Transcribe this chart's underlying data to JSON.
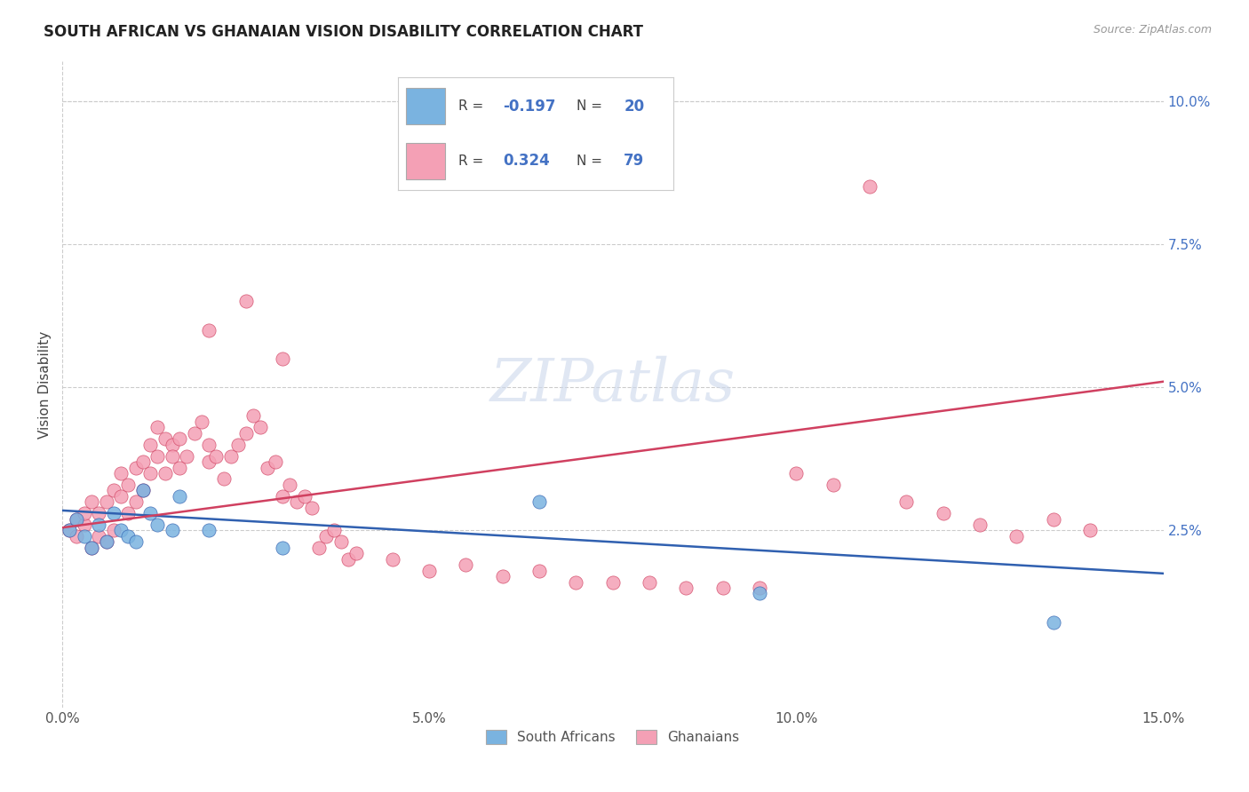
{
  "title": "SOUTH AFRICAN VS GHANAIAN VISION DISABILITY CORRELATION CHART",
  "source": "Source: ZipAtlas.com",
  "ylabel": "Vision Disability",
  "xlim": [
    0.0,
    0.15
  ],
  "ylim": [
    -0.006,
    0.107
  ],
  "sa_color": "#7ab3e0",
  "gh_color": "#f4a0b5",
  "sa_line_color": "#3060b0",
  "gh_line_color": "#d04060",
  "watermark": "ZIPatlas",
  "background_color": "#ffffff",
  "grid_color": "#cccccc",
  "title_color": "#222222",
  "axis_color": "#4472c4",
  "sa_line_y0": 0.0285,
  "sa_line_y1": 0.0175,
  "gh_line_y0": 0.0255,
  "gh_line_y1": 0.051,
  "sa_points_x": [
    0.001,
    0.002,
    0.003,
    0.004,
    0.005,
    0.006,
    0.007,
    0.008,
    0.009,
    0.01,
    0.011,
    0.012,
    0.013,
    0.015,
    0.016,
    0.02,
    0.03,
    0.065,
    0.095,
    0.135
  ],
  "sa_points_y": [
    0.025,
    0.027,
    0.024,
    0.022,
    0.026,
    0.023,
    0.028,
    0.025,
    0.024,
    0.023,
    0.032,
    0.028,
    0.026,
    0.025,
    0.031,
    0.025,
    0.022,
    0.03,
    0.014,
    0.009
  ],
  "gh_points_x": [
    0.001,
    0.002,
    0.002,
    0.003,
    0.003,
    0.004,
    0.004,
    0.005,
    0.005,
    0.006,
    0.006,
    0.007,
    0.007,
    0.008,
    0.008,
    0.009,
    0.009,
    0.01,
    0.01,
    0.011,
    0.011,
    0.012,
    0.012,
    0.013,
    0.013,
    0.014,
    0.014,
    0.015,
    0.015,
    0.016,
    0.016,
    0.017,
    0.018,
    0.019,
    0.02,
    0.02,
    0.021,
    0.022,
    0.023,
    0.024,
    0.025,
    0.026,
    0.027,
    0.028,
    0.029,
    0.03,
    0.031,
    0.032,
    0.033,
    0.034,
    0.035,
    0.036,
    0.037,
    0.038,
    0.039,
    0.04,
    0.045,
    0.05,
    0.055,
    0.06,
    0.065,
    0.07,
    0.075,
    0.08,
    0.085,
    0.09,
    0.095,
    0.1,
    0.105,
    0.11,
    0.115,
    0.12,
    0.125,
    0.13,
    0.135,
    0.14,
    0.02,
    0.025,
    0.03
  ],
  "gh_points_y": [
    0.025,
    0.024,
    0.027,
    0.026,
    0.028,
    0.022,
    0.03,
    0.024,
    0.028,
    0.023,
    0.03,
    0.025,
    0.032,
    0.031,
    0.035,
    0.028,
    0.033,
    0.03,
    0.036,
    0.032,
    0.037,
    0.035,
    0.04,
    0.038,
    0.043,
    0.035,
    0.041,
    0.04,
    0.038,
    0.041,
    0.036,
    0.038,
    0.042,
    0.044,
    0.037,
    0.04,
    0.038,
    0.034,
    0.038,
    0.04,
    0.042,
    0.045,
    0.043,
    0.036,
    0.037,
    0.031,
    0.033,
    0.03,
    0.031,
    0.029,
    0.022,
    0.024,
    0.025,
    0.023,
    0.02,
    0.021,
    0.02,
    0.018,
    0.019,
    0.017,
    0.018,
    0.016,
    0.016,
    0.016,
    0.015,
    0.015,
    0.015,
    0.035,
    0.033,
    0.085,
    0.03,
    0.028,
    0.026,
    0.024,
    0.027,
    0.025,
    0.06,
    0.065,
    0.055
  ]
}
